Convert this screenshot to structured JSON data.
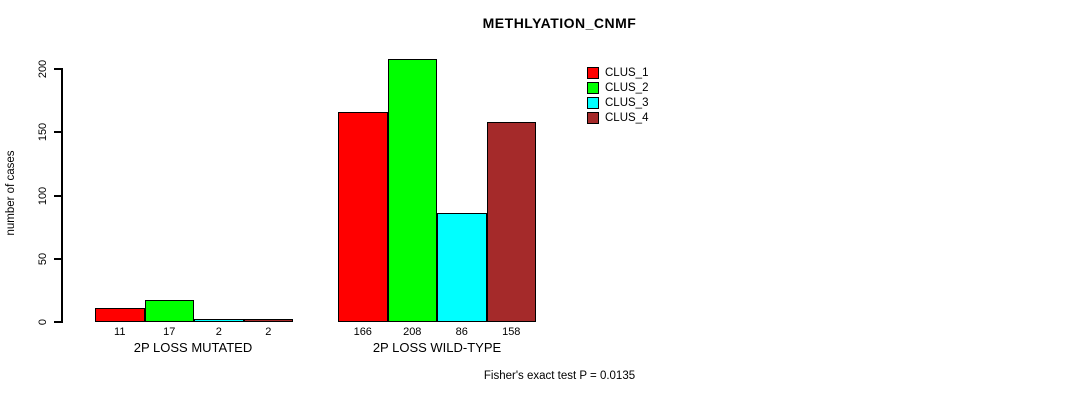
{
  "title": "METHLYATION_CNMF",
  "footer": "Fisher's exact test P = 0.0135",
  "chart_data": {
    "type": "bar",
    "title": "METHLYATION_CNMF",
    "xlabel": "",
    "ylabel": "number of cases",
    "ylim": [
      0,
      200
    ],
    "yticks": [
      0,
      50,
      100,
      150,
      200
    ],
    "grid": false,
    "bar_value_labels_shown": true,
    "legend_position": "top-right",
    "legend_entries": [
      "CLUS_1",
      "CLUS_2",
      "CLUS_3",
      "CLUS_4"
    ],
    "categories": [
      "2P LOSS MUTATED",
      "2P LOSS WILD-TYPE"
    ],
    "series": [
      {
        "name": "CLUS_1",
        "color": "#FF0000",
        "values": [
          11,
          166
        ]
      },
      {
        "name": "CLUS_2",
        "color": "#00FF00",
        "values": [
          17,
          208
        ]
      },
      {
        "name": "CLUS_3",
        "color": "#00FFFF",
        "values": [
          2,
          86
        ]
      },
      {
        "name": "CLUS_4",
        "color": "#A52A2A",
        "values": [
          2,
          158
        ]
      }
    ],
    "annotation": "Fisher's exact test P = 0.0135"
  },
  "colors": {
    "axis": "#000000",
    "background": "#FFFFFF",
    "text": "#000000"
  }
}
